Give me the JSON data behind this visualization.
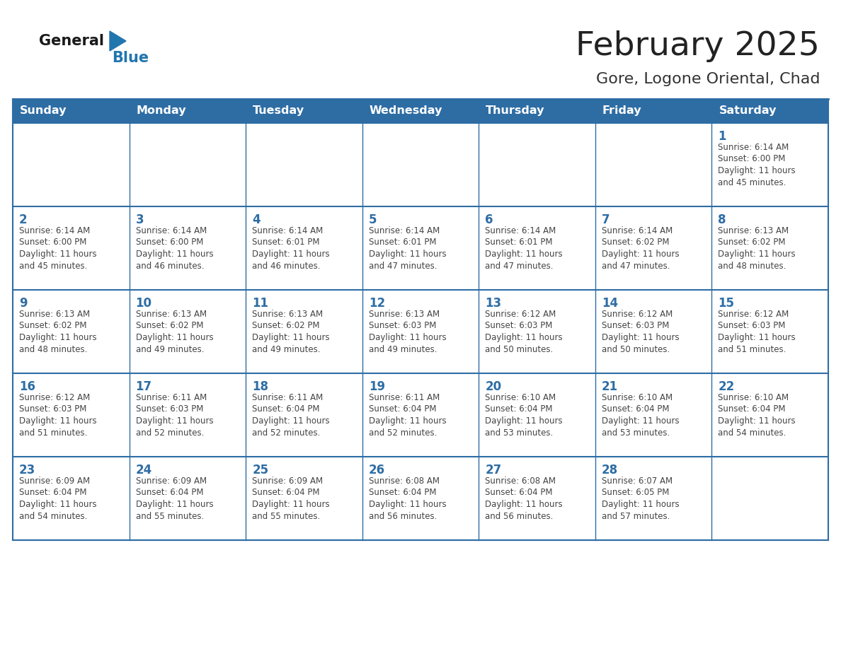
{
  "title": "February 2025",
  "subtitle": "Gore, Logone Oriental, Chad",
  "days_of_week": [
    "Sunday",
    "Monday",
    "Tuesday",
    "Wednesday",
    "Thursday",
    "Friday",
    "Saturday"
  ],
  "header_bg": "#2E6DA4",
  "header_text": "#FFFFFF",
  "cell_bg": "#FFFFFF",
  "cell_bg_alt": "#F2F2F2",
  "divider_color": "#2E6DA4",
  "text_color": "#444444",
  "day_num_color": "#2E6DA4",
  "logo_general_color": "#1a1a1a",
  "logo_blue_color": "#2176AE",
  "calendar_data": [
    [
      null,
      null,
      null,
      null,
      null,
      null,
      {
        "day": 1,
        "sunrise": "6:14 AM",
        "sunset": "6:00 PM",
        "daylight": "11 hours and 45 minutes."
      }
    ],
    [
      {
        "day": 2,
        "sunrise": "6:14 AM",
        "sunset": "6:00 PM",
        "daylight": "11 hours and 45 minutes."
      },
      {
        "day": 3,
        "sunrise": "6:14 AM",
        "sunset": "6:00 PM",
        "daylight": "11 hours and 46 minutes."
      },
      {
        "day": 4,
        "sunrise": "6:14 AM",
        "sunset": "6:01 PM",
        "daylight": "11 hours and 46 minutes."
      },
      {
        "day": 5,
        "sunrise": "6:14 AM",
        "sunset": "6:01 PM",
        "daylight": "11 hours and 47 minutes."
      },
      {
        "day": 6,
        "sunrise": "6:14 AM",
        "sunset": "6:01 PM",
        "daylight": "11 hours and 47 minutes."
      },
      {
        "day": 7,
        "sunrise": "6:14 AM",
        "sunset": "6:02 PM",
        "daylight": "11 hours and 47 minutes."
      },
      {
        "day": 8,
        "sunrise": "6:13 AM",
        "sunset": "6:02 PM",
        "daylight": "11 hours and 48 minutes."
      }
    ],
    [
      {
        "day": 9,
        "sunrise": "6:13 AM",
        "sunset": "6:02 PM",
        "daylight": "11 hours and 48 minutes."
      },
      {
        "day": 10,
        "sunrise": "6:13 AM",
        "sunset": "6:02 PM",
        "daylight": "11 hours and 49 minutes."
      },
      {
        "day": 11,
        "sunrise": "6:13 AM",
        "sunset": "6:02 PM",
        "daylight": "11 hours and 49 minutes."
      },
      {
        "day": 12,
        "sunrise": "6:13 AM",
        "sunset": "6:03 PM",
        "daylight": "11 hours and 49 minutes."
      },
      {
        "day": 13,
        "sunrise": "6:12 AM",
        "sunset": "6:03 PM",
        "daylight": "11 hours and 50 minutes."
      },
      {
        "day": 14,
        "sunrise": "6:12 AM",
        "sunset": "6:03 PM",
        "daylight": "11 hours and 50 minutes."
      },
      {
        "day": 15,
        "sunrise": "6:12 AM",
        "sunset": "6:03 PM",
        "daylight": "11 hours and 51 minutes."
      }
    ],
    [
      {
        "day": 16,
        "sunrise": "6:12 AM",
        "sunset": "6:03 PM",
        "daylight": "11 hours and 51 minutes."
      },
      {
        "day": 17,
        "sunrise": "6:11 AM",
        "sunset": "6:03 PM",
        "daylight": "11 hours and 52 minutes."
      },
      {
        "day": 18,
        "sunrise": "6:11 AM",
        "sunset": "6:04 PM",
        "daylight": "11 hours and 52 minutes."
      },
      {
        "day": 19,
        "sunrise": "6:11 AM",
        "sunset": "6:04 PM",
        "daylight": "11 hours and 52 minutes."
      },
      {
        "day": 20,
        "sunrise": "6:10 AM",
        "sunset": "6:04 PM",
        "daylight": "11 hours and 53 minutes."
      },
      {
        "day": 21,
        "sunrise": "6:10 AM",
        "sunset": "6:04 PM",
        "daylight": "11 hours and 53 minutes."
      },
      {
        "day": 22,
        "sunrise": "6:10 AM",
        "sunset": "6:04 PM",
        "daylight": "11 hours and 54 minutes."
      }
    ],
    [
      {
        "day": 23,
        "sunrise": "6:09 AM",
        "sunset": "6:04 PM",
        "daylight": "11 hours and 54 minutes."
      },
      {
        "day": 24,
        "sunrise": "6:09 AM",
        "sunset": "6:04 PM",
        "daylight": "11 hours and 55 minutes."
      },
      {
        "day": 25,
        "sunrise": "6:09 AM",
        "sunset": "6:04 PM",
        "daylight": "11 hours and 55 minutes."
      },
      {
        "day": 26,
        "sunrise": "6:08 AM",
        "sunset": "6:04 PM",
        "daylight": "11 hours and 56 minutes."
      },
      {
        "day": 27,
        "sunrise": "6:08 AM",
        "sunset": "6:04 PM",
        "daylight": "11 hours and 56 minutes."
      },
      {
        "day": 28,
        "sunrise": "6:07 AM",
        "sunset": "6:05 PM",
        "daylight": "11 hours and 57 minutes."
      },
      null
    ]
  ]
}
